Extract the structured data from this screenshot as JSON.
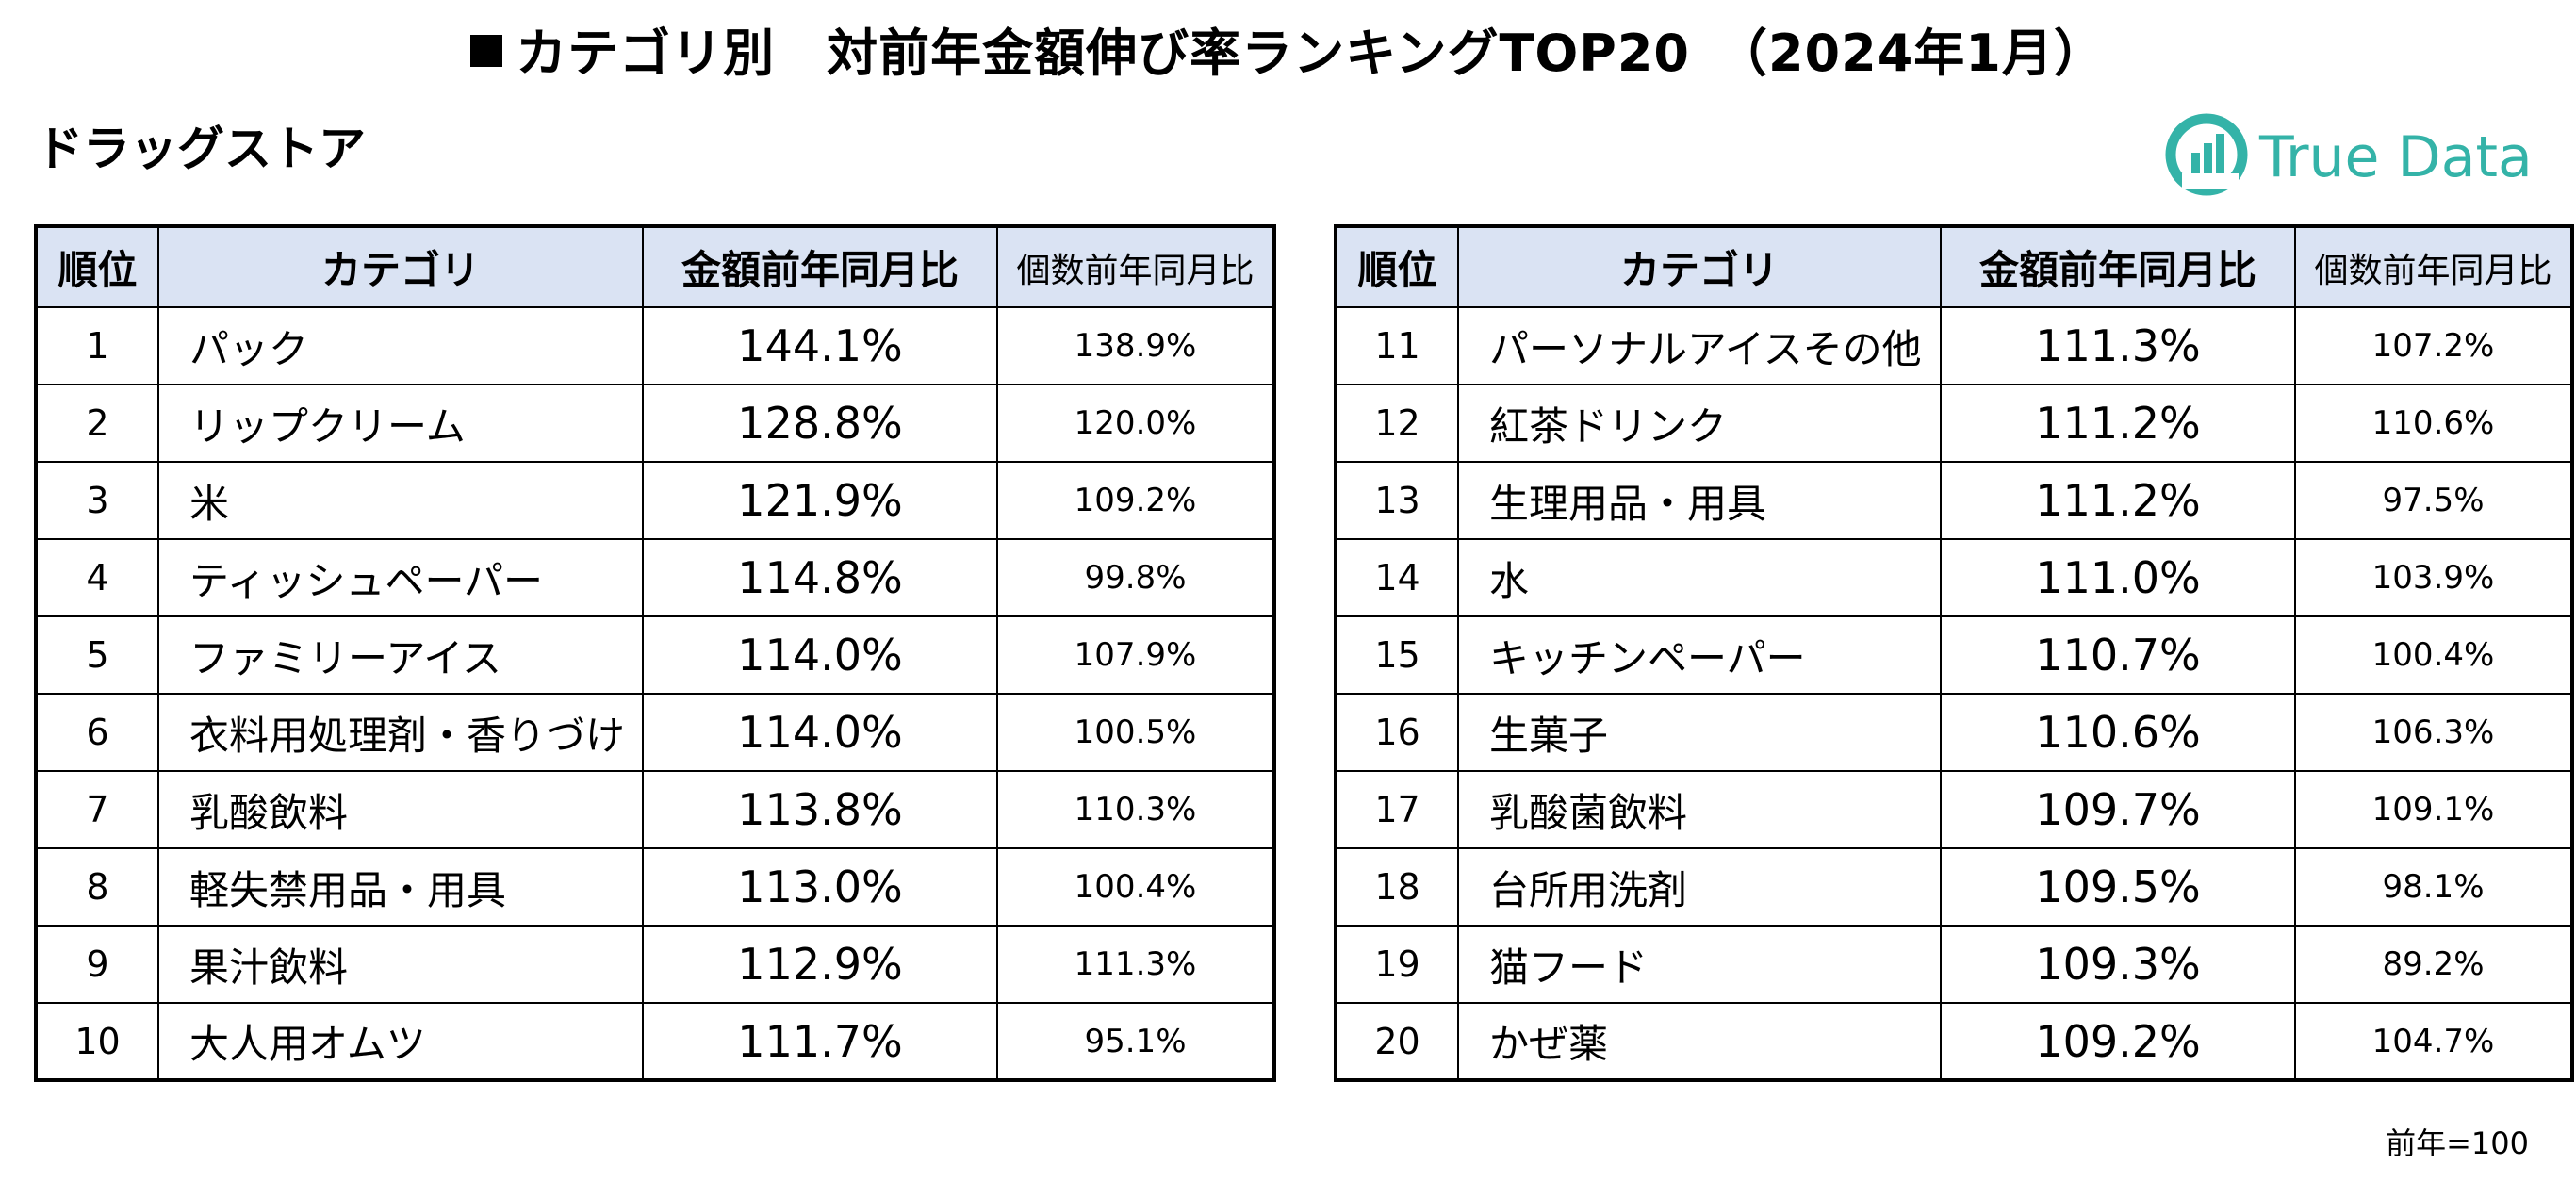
{
  "title": "カテゴリ別　対前年金額伸び率ランキングTOP20　（2024年1月）",
  "title_icon": "black-square",
  "section": "ドラッグストア",
  "logo": {
    "text": "True Data",
    "color": "#34b3a8",
    "icon": "bar-chart-circle-logo"
  },
  "header_bg": "#dae3f3",
  "columns": [
    "順位",
    "カテゴリ",
    "金額前年同月比",
    "個数前年同月比"
  ],
  "left_table": [
    {
      "rank": "1",
      "category": "パック",
      "amount_yoy": "144.1%",
      "units_yoy": "138.9%"
    },
    {
      "rank": "2",
      "category": "リップクリーム",
      "amount_yoy": "128.8%",
      "units_yoy": "120.0%"
    },
    {
      "rank": "3",
      "category": "米",
      "amount_yoy": "121.9%",
      "units_yoy": "109.2%"
    },
    {
      "rank": "4",
      "category": "ティッシュペーパー",
      "amount_yoy": "114.8%",
      "units_yoy": "99.8%"
    },
    {
      "rank": "5",
      "category": "ファミリーアイス",
      "amount_yoy": "114.0%",
      "units_yoy": "107.9%"
    },
    {
      "rank": "6",
      "category": "衣料用処理剤・香りづけ",
      "amount_yoy": "114.0%",
      "units_yoy": "100.5%"
    },
    {
      "rank": "7",
      "category": "乳酸飲料",
      "amount_yoy": "113.8%",
      "units_yoy": "110.3%"
    },
    {
      "rank": "8",
      "category": "軽失禁用品・用具",
      "amount_yoy": "113.0%",
      "units_yoy": "100.4%"
    },
    {
      "rank": "9",
      "category": "果汁飲料",
      "amount_yoy": "112.9%",
      "units_yoy": "111.3%"
    },
    {
      "rank": "10",
      "category": "大人用オムツ",
      "amount_yoy": "111.7%",
      "units_yoy": "95.1%"
    }
  ],
  "right_table": [
    {
      "rank": "11",
      "category": "パーソナルアイスその他",
      "amount_yoy": "111.3%",
      "units_yoy": "107.2%"
    },
    {
      "rank": "12",
      "category": "紅茶ドリンク",
      "amount_yoy": "111.2%",
      "units_yoy": "110.6%"
    },
    {
      "rank": "13",
      "category": "生理用品・用具",
      "amount_yoy": "111.2%",
      "units_yoy": "97.5%"
    },
    {
      "rank": "14",
      "category": "水",
      "amount_yoy": "111.0%",
      "units_yoy": "103.9%"
    },
    {
      "rank": "15",
      "category": "キッチンペーパー",
      "amount_yoy": "110.7%",
      "units_yoy": "100.4%"
    },
    {
      "rank": "16",
      "category": "生菓子",
      "amount_yoy": "110.6%",
      "units_yoy": "106.3%"
    },
    {
      "rank": "17",
      "category": "乳酸菌飲料",
      "amount_yoy": "109.7%",
      "units_yoy": "109.1%"
    },
    {
      "rank": "18",
      "category": "台所用洗剤",
      "amount_yoy": "109.5%",
      "units_yoy": "98.1%"
    },
    {
      "rank": "19",
      "category": "猫フード",
      "amount_yoy": "109.3%",
      "units_yoy": "89.2%"
    },
    {
      "rank": "20",
      "category": "かぜ薬",
      "amount_yoy": "109.2%",
      "units_yoy": "104.7%"
    }
  ],
  "footnote": "前年=100"
}
